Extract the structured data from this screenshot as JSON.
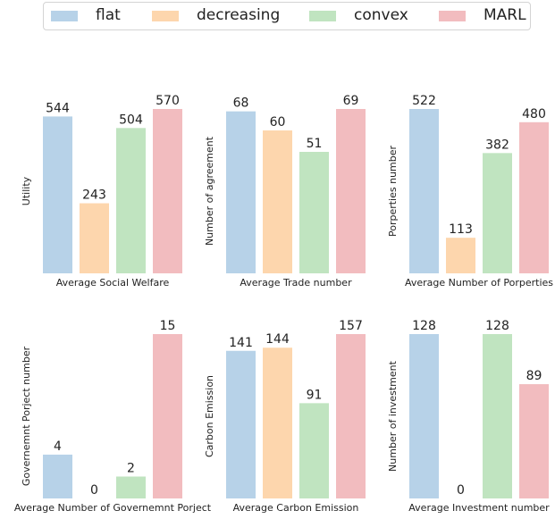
{
  "legend": [
    "flat",
    "decreasing",
    "convex",
    "MARL"
  ],
  "colors": [
    "#b7d2e8",
    "#fdd6ad",
    "#c0e4c0",
    "#f2bcbf"
  ],
  "chart_data": [
    {
      "type": "bar",
      "categories": [
        "flat",
        "decreasing",
        "convex",
        "MARL"
      ],
      "values": [
        544,
        243,
        504,
        570
      ],
      "xlabel": "Average Social Welfare",
      "ylabel": "Utility"
    },
    {
      "type": "bar",
      "categories": [
        "flat",
        "decreasing",
        "convex",
        "MARL"
      ],
      "values": [
        68,
        60,
        51,
        69
      ],
      "xlabel": "Average Trade number",
      "ylabel": "Number of agreement"
    },
    {
      "type": "bar",
      "categories": [
        "flat",
        "decreasing",
        "convex",
        "MARL"
      ],
      "values": [
        522,
        113,
        382,
        480
      ],
      "xlabel": "Average Number of Porperties",
      "ylabel": "Porperties number"
    },
    {
      "type": "bar",
      "categories": [
        "flat",
        "decreasing",
        "convex",
        "MARL"
      ],
      "values": [
        4,
        0,
        2,
        15
      ],
      "xlabel": "Average Number of Governemnt Porject",
      "ylabel": "Governemnt Porject number"
    },
    {
      "type": "bar",
      "categories": [
        "flat",
        "decreasing",
        "convex",
        "MARL"
      ],
      "values": [
        141,
        144,
        91,
        157
      ],
      "xlabel": "Average Carbon Emission",
      "ylabel": "Carbon Emission"
    },
    {
      "type": "bar",
      "categories": [
        "flat",
        "decreasing",
        "convex",
        "MARL"
      ],
      "values": [
        128,
        0,
        128,
        89
      ],
      "xlabel": "Average Investment number",
      "ylabel": "Number of investment"
    }
  ]
}
